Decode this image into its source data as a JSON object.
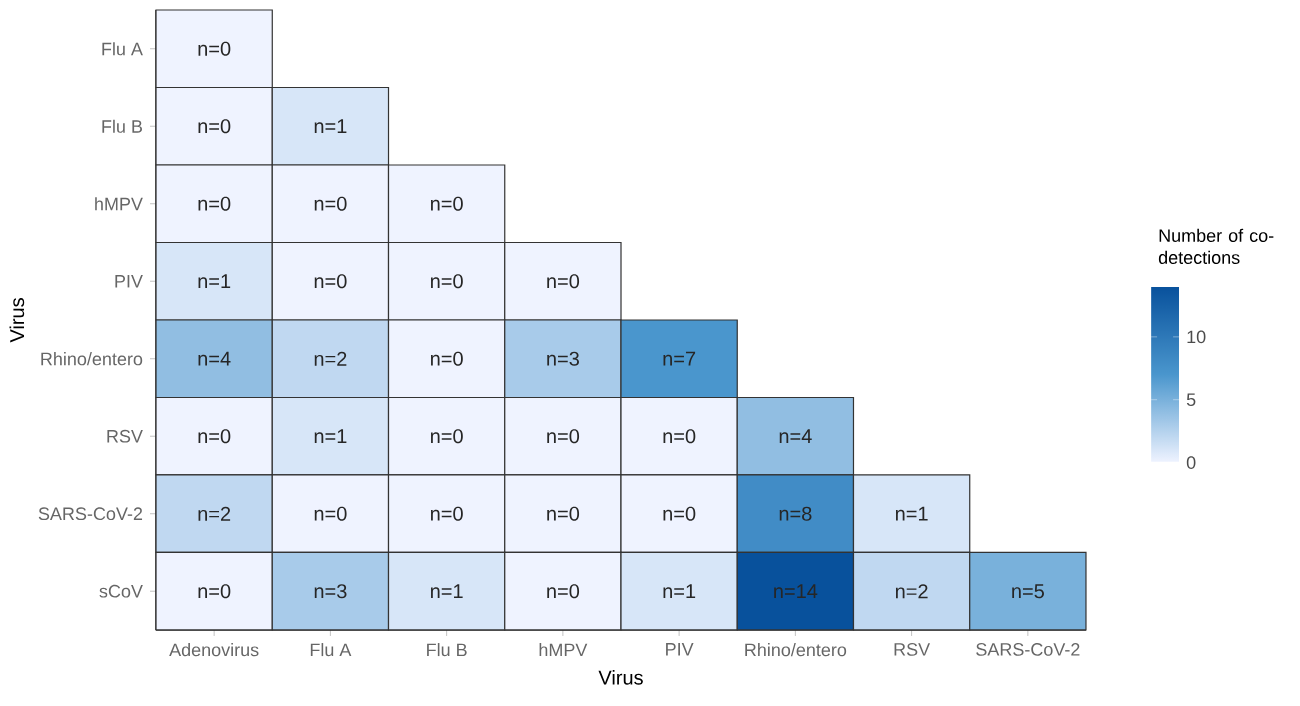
{
  "chart_data": {
    "type": "heatmap",
    "xlabel": "Virus",
    "ylabel": "Virus",
    "clabel": "Number of co-detections",
    "categories": [
      "Adenovirus",
      "Flu A",
      "Flu B",
      "hMPV",
      "PIV",
      "Rhino/entero",
      "RSV",
      "SARS-CoV-2"
    ],
    "y_categories": [
      "Flu A",
      "Flu B",
      "hMPV",
      "PIV",
      "Rhino/entero",
      "RSV",
      "SARS-CoV-2",
      "sCoV"
    ],
    "cells": [
      [
        0,
        null,
        null,
        null,
        null,
        null,
        null,
        null
      ],
      [
        0,
        1,
        null,
        null,
        null,
        null,
        null,
        null
      ],
      [
        0,
        0,
        0,
        null,
        null,
        null,
        null,
        null
      ],
      [
        1,
        0,
        0,
        0,
        null,
        null,
        null,
        null
      ],
      [
        4,
        2,
        0,
        3,
        7,
        null,
        null,
        null
      ],
      [
        0,
        1,
        0,
        0,
        0,
        4,
        null,
        null
      ],
      [
        2,
        0,
        0,
        0,
        0,
        8,
        1,
        null
      ],
      [
        0,
        3,
        1,
        0,
        1,
        14,
        2,
        5
      ]
    ],
    "cell_labels": [
      [
        "n=0",
        null,
        null,
        null,
        null,
        null,
        null,
        null
      ],
      [
        "n=0",
        "n=1",
        null,
        null,
        null,
        null,
        null,
        null
      ],
      [
        "n=0",
        "n=0",
        "n=0",
        null,
        null,
        null,
        null,
        null
      ],
      [
        "n=1",
        "n=0",
        "n=0",
        "n=0",
        null,
        null,
        null,
        null
      ],
      [
        "n=4",
        "n=2",
        "n=0",
        "n=3",
        "n=7",
        null,
        null,
        null
      ],
      [
        "n=0",
        "n=1",
        "n=0",
        "n=0",
        "n=0",
        "n=4",
        null,
        null
      ],
      [
        "n=2",
        "n=0",
        "n=0",
        "n=0",
        "n=0",
        "n=8",
        "n=1",
        null
      ],
      [
        "n=0",
        "n=3",
        "n=1",
        "n=0",
        "n=1",
        "n=14",
        "n=2",
        "n=5"
      ]
    ],
    "clim": [
      0,
      14
    ],
    "cticks": [
      0,
      5,
      10
    ]
  }
}
